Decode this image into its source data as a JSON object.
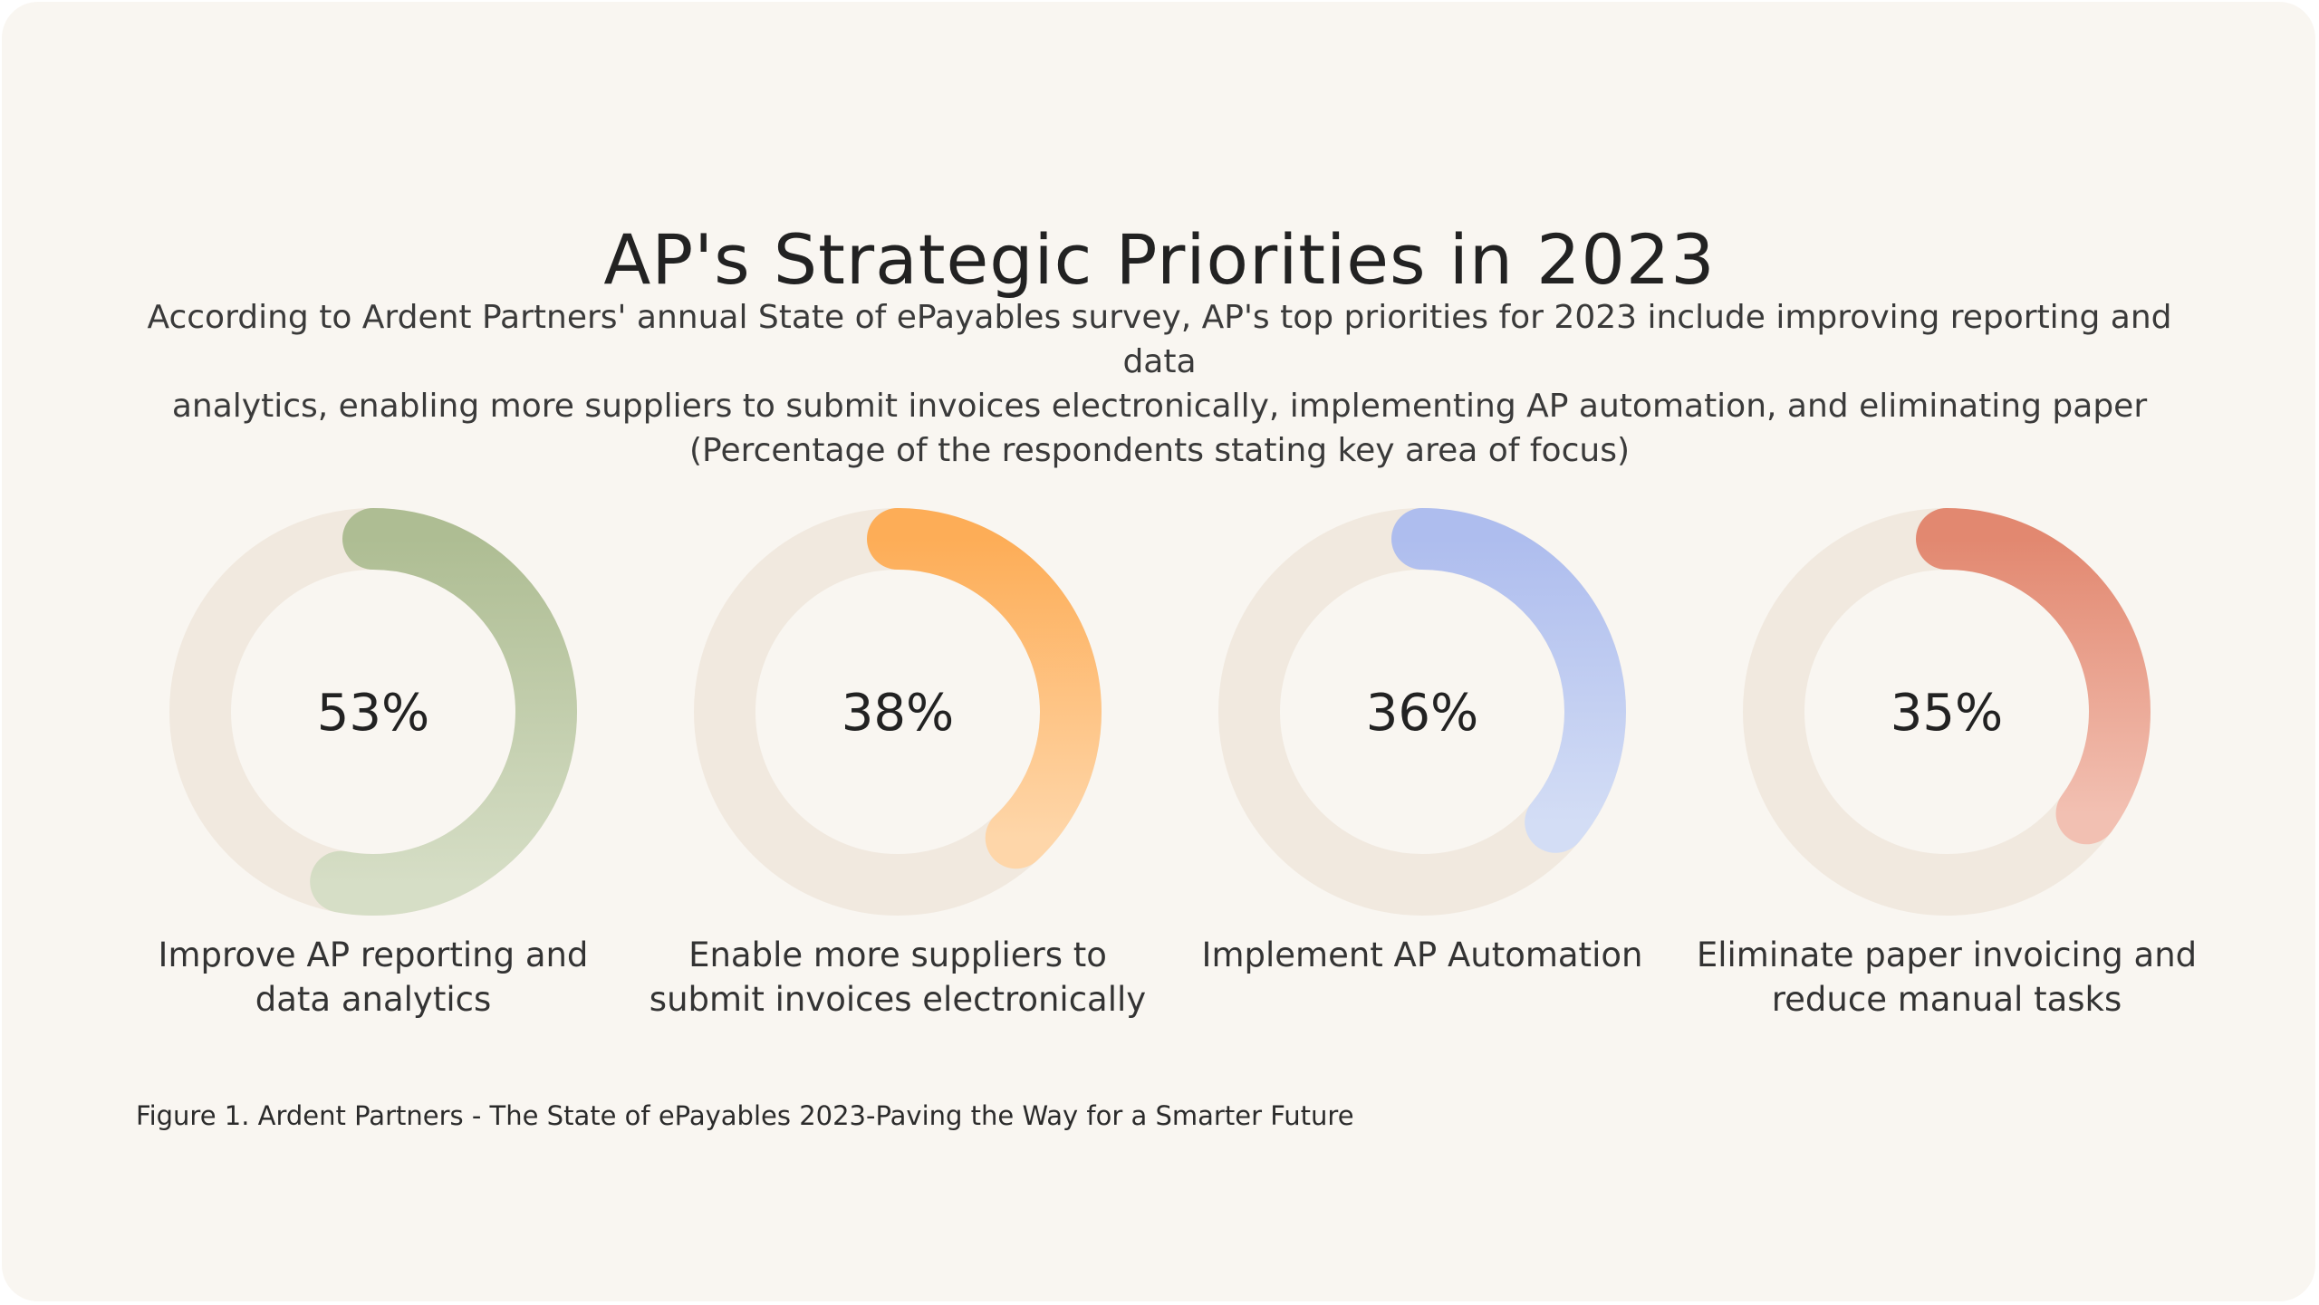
{
  "title": "AP's Strategic Priorities in 2023",
  "subtitle_lines": [
    "According to Ardent Partners' annual State of ePayables survey, AP's top priorities for 2023 include improving reporting and data",
    "analytics, enabling more suppliers to submit invoices electronically, implementing AP automation, and eliminating paper",
    "(Percentage of the respondents stating key area of focus)"
  ],
  "caption": "Figure 1. Ardent Partners - The State of ePayables 2023-Paving the Way for a Smarter Future",
  "colors": {
    "track": "#f1e9df",
    "background": "#f9f6f1"
  },
  "chart_data": {
    "type": "donut",
    "title": "AP's Strategic Priorities in 2023",
    "unit": "%",
    "items": [
      {
        "label_lines": [
          "Improve AP reporting and",
          "data analytics"
        ],
        "value": 53,
        "display": "53%",
        "color_start": "#aebd93",
        "color_end": "#d6dec6"
      },
      {
        "label_lines": [
          "Enable more suppliers to",
          "submit invoices electronically"
        ],
        "value": 38,
        "display": "38%",
        "color_start": "#fdad57",
        "color_end": "#fed6a9"
      },
      {
        "label_lines": [
          "Implement AP Automation"
        ],
        "value": 36,
        "display": "36%",
        "color_start": "#aebdee",
        "color_end": "#d3ddf5"
      },
      {
        "label_lines": [
          "Eliminate paper invoicing and",
          "reduce manual tasks"
        ],
        "value": 35,
        "display": "35%",
        "color_start": "#e28870",
        "color_end": "#f2c0b2"
      }
    ]
  }
}
